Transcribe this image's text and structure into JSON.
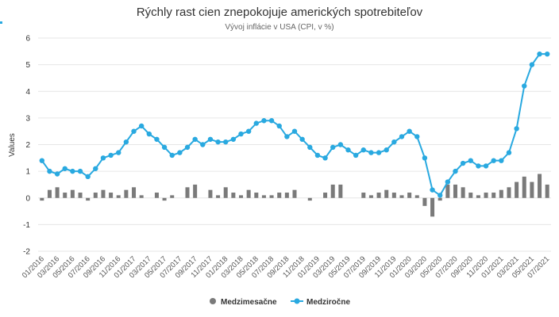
{
  "chart_data": {
    "type": "bar+line",
    "title": "Rýchly rast cien znepokojuje amerických spotrebiteľov",
    "subtitle": "Vývoj inflácie v USA (CPI, v %)",
    "ylabel": "Values",
    "ylim": [
      -2,
      6
    ],
    "yticks": [
      -2,
      -1,
      0,
      1,
      2,
      3,
      4,
      5,
      6
    ],
    "grid": true,
    "legend_position": "bottom-center",
    "x": [
      "01/2016",
      "02/2016",
      "03/2016",
      "04/2016",
      "05/2016",
      "06/2016",
      "07/2016",
      "08/2016",
      "09/2016",
      "10/2016",
      "11/2016",
      "12/2016",
      "01/2017",
      "02/2017",
      "03/2017",
      "04/2017",
      "05/2017",
      "06/2017",
      "07/2017",
      "08/2017",
      "09/2017",
      "10/2017",
      "11/2017",
      "12/2017",
      "01/2018",
      "02/2018",
      "03/2018",
      "04/2018",
      "05/2018",
      "06/2018",
      "07/2018",
      "08/2018",
      "09/2018",
      "10/2018",
      "11/2018",
      "12/2018",
      "01/2019",
      "02/2019",
      "03/2019",
      "04/2019",
      "05/2019",
      "06/2019",
      "07/2019",
      "08/2019",
      "09/2019",
      "10/2019",
      "11/2019",
      "12/2019",
      "01/2020",
      "02/2020",
      "03/2020",
      "04/2020",
      "05/2020",
      "06/2020",
      "07/2020",
      "08/2020",
      "09/2020",
      "10/2020",
      "11/2020",
      "12/2020",
      "01/2021",
      "02/2021",
      "03/2021",
      "04/2021",
      "05/2021",
      "06/2021",
      "07/2021"
    ],
    "xtick_labels": [
      "01/2016",
      "03/2016",
      "05/2016",
      "07/2016",
      "09/2016",
      "11/2016",
      "01/2017",
      "03/2017",
      "05/2017",
      "07/2017",
      "09/2017",
      "11/2017",
      "01/2018",
      "03/2018",
      "05/2018",
      "07/2018",
      "09/2018",
      "11/2018",
      "01/2019",
      "03/2019",
      "05/2019",
      "07/2019",
      "09/2019",
      "11/2019",
      "01/2020",
      "03/2020",
      "05/2020",
      "07/2020",
      "09/2020",
      "11/2020",
      "01/2021",
      "03/2021",
      "05/2021",
      "07/2021"
    ],
    "series": [
      {
        "name": "Medzimesačne",
        "type": "bar",
        "color": "#7a7a7a",
        "values": [
          -0.1,
          0.3,
          0.4,
          0.2,
          0.3,
          0.2,
          -0.1,
          0.2,
          0.3,
          0.2,
          0.1,
          0.3,
          0.4,
          0.1,
          0.0,
          0.2,
          -0.1,
          0.1,
          0.0,
          0.4,
          0.5,
          0.0,
          0.3,
          0.1,
          0.4,
          0.2,
          0.1,
          0.3,
          0.2,
          0.1,
          0.1,
          0.2,
          0.2,
          0.3,
          0.0,
          -0.1,
          0.0,
          0.2,
          0.5,
          0.5,
          0.0,
          0.0,
          0.2,
          0.1,
          0.2,
          0.3,
          0.2,
          0.1,
          0.2,
          0.1,
          -0.3,
          -0.7,
          -0.1,
          0.5,
          0.5,
          0.4,
          0.2,
          0.1,
          0.2,
          0.2,
          0.3,
          0.4,
          0.6,
          0.8,
          0.6,
          0.9,
          0.5
        ]
      },
      {
        "name": "Medziročne",
        "type": "line",
        "color": "#29a9e0",
        "values": [
          1.4,
          1.0,
          0.9,
          1.1,
          1.0,
          1.0,
          0.8,
          1.1,
          1.5,
          1.6,
          1.7,
          2.1,
          2.5,
          2.7,
          2.4,
          2.2,
          1.9,
          1.6,
          1.7,
          1.9,
          2.2,
          2.0,
          2.2,
          2.1,
          2.1,
          2.2,
          2.4,
          2.5,
          2.8,
          2.9,
          2.9,
          2.7,
          2.3,
          2.5,
          2.2,
          1.9,
          1.6,
          1.5,
          1.9,
          2.0,
          1.8,
          1.6,
          1.8,
          1.7,
          1.7,
          1.8,
          2.1,
          2.3,
          2.5,
          2.3,
          1.5,
          0.3,
          0.1,
          0.6,
          1.0,
          1.3,
          1.4,
          1.2,
          1.2,
          1.4,
          1.4,
          1.7,
          2.6,
          4.2,
          5.0,
          5.4,
          5.4
        ]
      }
    ]
  }
}
